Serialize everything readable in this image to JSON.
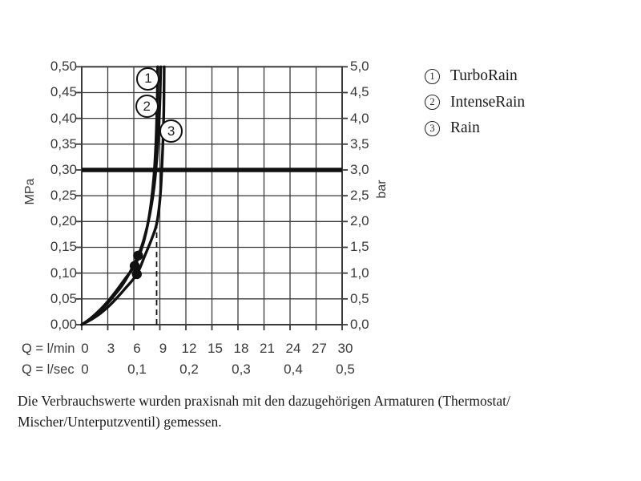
{
  "page": {
    "background": "#ffffff"
  },
  "legend": {
    "items": [
      {
        "num": "1",
        "label": "TurboRain"
      },
      {
        "num": "2",
        "label": "IntenseRain"
      },
      {
        "num": "3",
        "label": "Rain"
      }
    ]
  },
  "caption": {
    "line1": "Die Verbrauchswerte wurden praxisnah mit den dazugehörigen Armaturen (Thermostat/",
    "line2": "Mischer/Unterputzventil) gemessen."
  },
  "chart_data": {
    "type": "line",
    "title": "",
    "x_axis": {
      "label_row1": "Q = l/min",
      "min": 0,
      "max": 30,
      "step": 3,
      "ticks_row1": [
        "0",
        "3",
        "6",
        "9",
        "12",
        "15",
        "18",
        "21",
        "24",
        "27",
        "30"
      ],
      "label_row2": "Q = l/sec",
      "ticks_row2": [
        {
          "q": 0,
          "text": "0"
        },
        {
          "q": 6,
          "text": "0,1"
        },
        {
          "q": 12,
          "text": "0,2"
        },
        {
          "q": 18,
          "text": "0,3"
        },
        {
          "q": 24,
          "text": "0,4"
        },
        {
          "q": 30,
          "text": "0,5"
        }
      ]
    },
    "y_axis_left": {
      "unit": "MPa",
      "min": 0,
      "max": 0.5,
      "step": 0.05,
      "ticks": [
        "0,50",
        "0,45",
        "0,40",
        "0,35",
        "0,30",
        "0,25",
        "0,20",
        "0,15",
        "0,10",
        "0,05",
        "0,00"
      ]
    },
    "y_axis_right": {
      "unit": "bar",
      "min": 0,
      "max": 5,
      "step": 0.5,
      "ticks": [
        "5,0",
        "4,5",
        "4,0",
        "3,5",
        "3,0",
        "2,5",
        "2,0",
        "1,5",
        "1,0",
        "0,5",
        "0,0"
      ]
    },
    "grid": true,
    "legend_position": "right-top",
    "reference_line": {
      "p_mpa": 0.3,
      "bar": 3.0
    },
    "dashed_line": {
      "q_lmin": 8.63,
      "p_top_mpa": 0.19
    },
    "series": [
      {
        "name": "TurboRain",
        "callout": "1",
        "points": [
          [
            0,
            0
          ],
          [
            1,
            0.012
          ],
          [
            2,
            0.027
          ],
          [
            3,
            0.045
          ],
          [
            4,
            0.066
          ],
          [
            5,
            0.089
          ],
          [
            6.1,
            0.114
          ],
          [
            6.8,
            0.142
          ],
          [
            7.4,
            0.178
          ],
          [
            7.9,
            0.225
          ],
          [
            8.3,
            0.285
          ],
          [
            8.55,
            0.355
          ],
          [
            8.7,
            0.44
          ],
          [
            8.75,
            0.5
          ]
        ],
        "marker": {
          "q": 6.1,
          "p": 0.114
        }
      },
      {
        "name": "IntenseRain",
        "callout": "2",
        "points": [
          [
            0,
            0
          ],
          [
            1,
            0.011
          ],
          [
            2,
            0.025
          ],
          [
            3,
            0.042
          ],
          [
            4,
            0.062
          ],
          [
            5,
            0.085
          ],
          [
            6.5,
            0.134
          ],
          [
            7.2,
            0.168
          ],
          [
            7.8,
            0.21
          ],
          [
            8.35,
            0.268
          ],
          [
            8.75,
            0.345
          ],
          [
            9.0,
            0.43
          ],
          [
            9.1,
            0.5
          ]
        ],
        "marker": {
          "q": 6.5,
          "p": 0.134
        }
      },
      {
        "name": "Rain",
        "callout": "3",
        "points": [
          [
            0,
            0
          ],
          [
            1,
            0.009
          ],
          [
            2,
            0.02
          ],
          [
            3,
            0.034
          ],
          [
            4,
            0.051
          ],
          [
            5,
            0.07
          ],
          [
            6.35,
            0.098
          ],
          [
            7.3,
            0.135
          ],
          [
            8.1,
            0.168
          ],
          [
            8.65,
            0.197
          ],
          [
            9.05,
            0.25
          ],
          [
            9.3,
            0.33
          ],
          [
            9.45,
            0.41
          ],
          [
            9.5,
            0.5
          ]
        ],
        "marker": {
          "q": 6.35,
          "p": 0.098
        }
      }
    ],
    "callouts": [
      {
        "num": "1",
        "q": 7.66,
        "p": 0.477
      },
      {
        "num": "2",
        "q": 7.5,
        "p": 0.423
      },
      {
        "num": "3",
        "q": 10.3,
        "p": 0.375
      }
    ],
    "colors": {
      "ink": "#111111",
      "grid": "#3a3a3a",
      "text": "#3a3a3a"
    }
  }
}
